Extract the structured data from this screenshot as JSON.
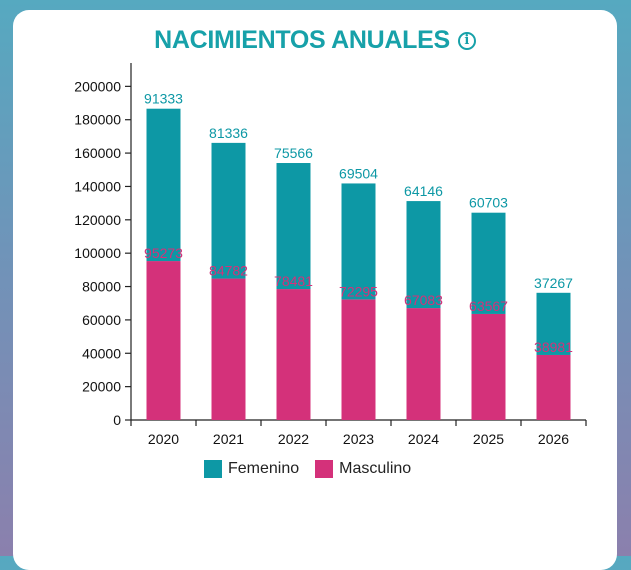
{
  "title": "NACIMIENTOS ANUALES",
  "info_icon": "info-icon",
  "colors": {
    "femenino": "#0d98a5",
    "masculino": "#d4317a",
    "title": "#17a1a9"
  },
  "chart_data": {
    "type": "bar",
    "stacked": true,
    "categories": [
      "2020",
      "2021",
      "2022",
      "2023",
      "2024",
      "2025",
      "2026"
    ],
    "series": [
      {
        "name": "Masculino",
        "values": [
          95273,
          84782,
          78481,
          72295,
          67083,
          63567,
          38981
        ]
      },
      {
        "name": "Femenino",
        "values": [
          91333,
          81336,
          75566,
          69504,
          64146,
          60703,
          37267
        ]
      }
    ],
    "yticks": [
      "0",
      "20000",
      "40000",
      "60000",
      "80000",
      "100000",
      "120000",
      "140000",
      "160000",
      "180000",
      "200000"
    ],
    "ylim": [
      0,
      214000
    ],
    "grid": false,
    "legend": "bottom"
  },
  "legend": [
    {
      "label": "Femenino",
      "color": "#0d98a5"
    },
    {
      "label": "Masculino",
      "color": "#d4317a"
    }
  ]
}
